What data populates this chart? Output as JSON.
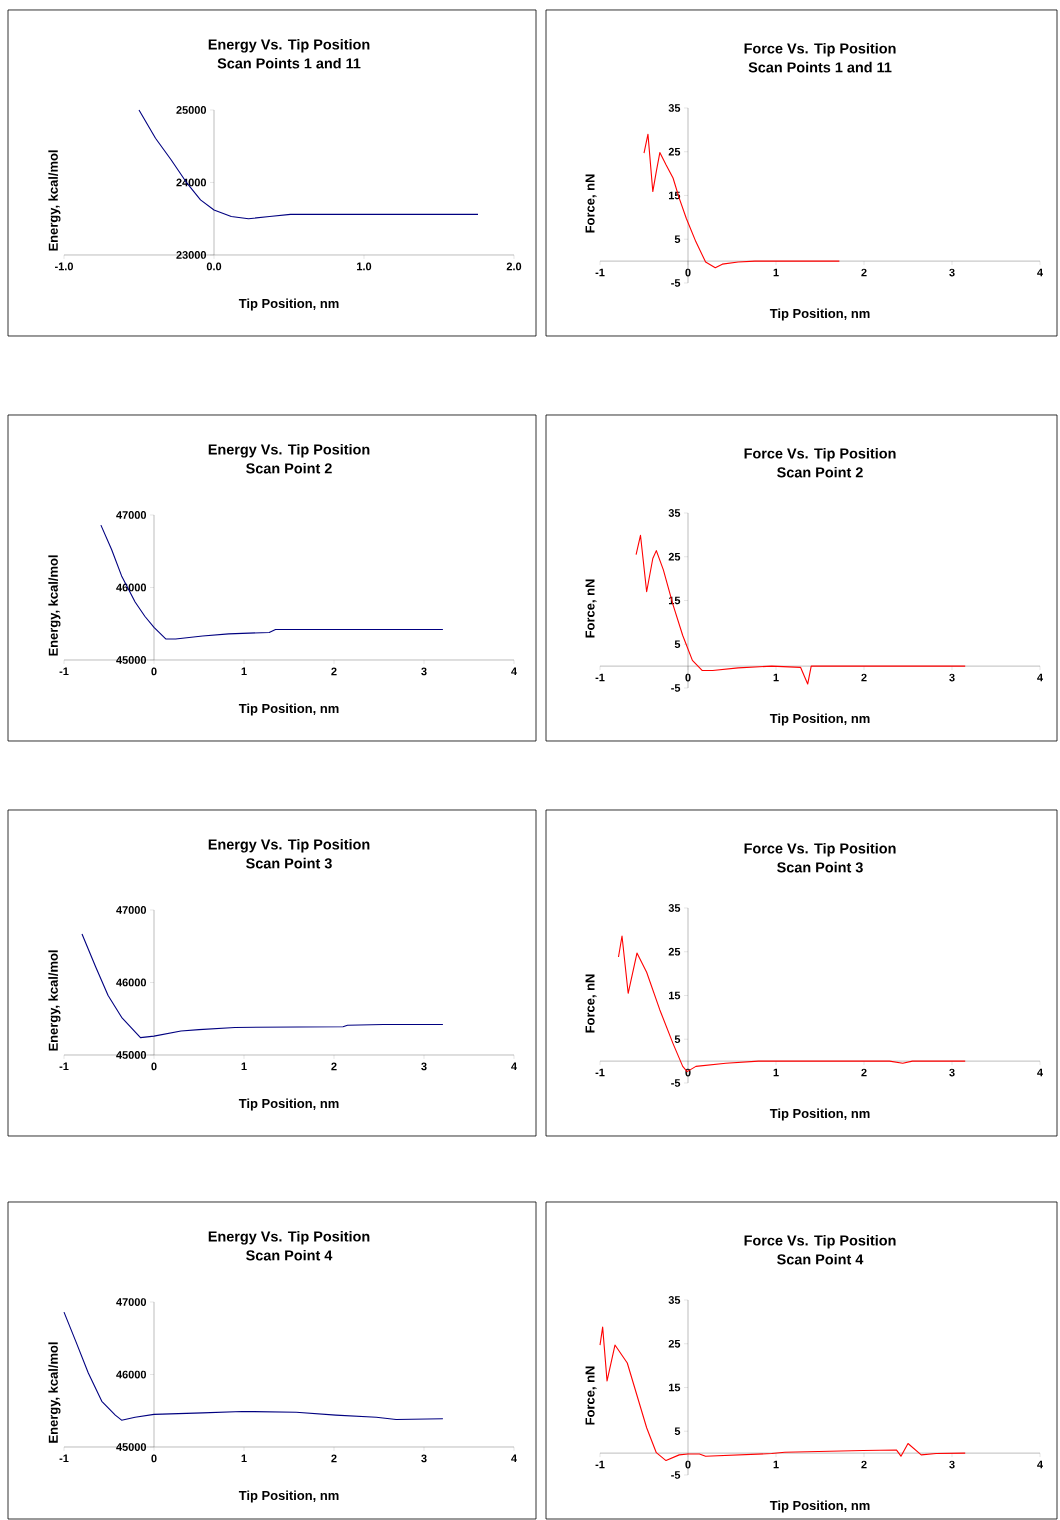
{
  "chart_data": [
    {
      "type": "line",
      "title": "Energy Vs. Tip Position",
      "subtitle": "Scan Points 1 and 11",
      "xlabel": "Tip Position, nm",
      "ylabel": "Energy, kcal/mol",
      "color": "#000080",
      "x": [
        -0.5,
        -0.39,
        -0.285,
        -0.18,
        -0.09,
        0,
        0.115,
        0.23,
        0.37,
        0.51,
        1.0,
        1.5,
        1.76
      ],
      "values": [
        25000,
        24610,
        24310,
        23990,
        23760,
        23620,
        23530,
        23500,
        23530,
        23560,
        23560,
        23560,
        23560
      ],
      "xlim": [
        -1,
        2
      ],
      "ylim": [
        23000,
        25000
      ],
      "xticks": [
        {
          "value": -1,
          "label": "-1.0"
        },
        {
          "value": 0,
          "label": "0.0"
        },
        {
          "value": 1,
          "label": "1.0"
        },
        {
          "value": 2,
          "label": "2.0"
        }
      ],
      "yticks": [
        23000,
        24000,
        25000
      ]
    },
    {
      "type": "line",
      "title": "Force Vs. Tip Position",
      "subtitle": "Scan Points 1 and 11",
      "xlabel": "Tip Position, nm",
      "ylabel": "Force, nN",
      "color": "#ff0000",
      "x": [
        -0.5,
        -0.455,
        -0.4,
        -0.36,
        -0.32,
        -0.25,
        -0.17,
        -0.1,
        -0.02,
        0.09,
        0.2,
        0.31,
        0.39,
        0.57,
        0.76,
        1.72
      ],
      "values": [
        24.7,
        29.0,
        15.9,
        20.5,
        24.8,
        22,
        19,
        14.4,
        9.8,
        4.4,
        -0.2,
        -1.5,
        -0.7,
        -0.2,
        0,
        0
      ],
      "xlim": [
        -1,
        4
      ],
      "ylim": [
        -5,
        35
      ],
      "xticks": [
        -1,
        0,
        1,
        2,
        3,
        4
      ],
      "yticks": [
        -5,
        5,
        15,
        25,
        35
      ]
    },
    {
      "type": "line",
      "title": "Energy Vs. Tip Position",
      "subtitle": "Scan Point 2",
      "xlabel": "Tip Position, nm",
      "ylabel": "Energy, kcal/mol",
      "color": "#000080",
      "x": [
        -0.59,
        -0.47,
        -0.36,
        -0.21,
        -0.1,
        0,
        0.13,
        0.24,
        0.54,
        0.83,
        1.28,
        1.35,
        3.21
      ],
      "values": [
        46860,
        46520,
        46160,
        45800,
        45600,
        45450,
        45290,
        45290,
        45330,
        45360,
        45380,
        45420,
        45420
      ],
      "xlim": [
        -1,
        4
      ],
      "ylim": [
        45000,
        47000
      ],
      "xticks": [
        -1,
        0,
        1,
        2,
        3,
        4
      ],
      "yticks": [
        45000,
        46000,
        47000
      ]
    },
    {
      "type": "line",
      "title": "Force Vs. Tip Position",
      "subtitle": "Scan Point 2",
      "xlabel": "Tip Position, nm",
      "ylabel": "Force, nN",
      "color": "#ff0000",
      "x": [
        -0.59,
        -0.54,
        -0.47,
        -0.4,
        -0.36,
        -0.28,
        -0.17,
        -0.06,
        0.05,
        0.16,
        0.28,
        0.57,
        0.95,
        1.28,
        1.36,
        1.4,
        3.15
      ],
      "values": [
        25.5,
        29.9,
        17.0,
        24.6,
        26.4,
        22,
        14,
        7,
        1.3,
        -1.0,
        -1.0,
        -0.4,
        0,
        -0.3,
        -4.1,
        0,
        0
      ],
      "xlim": [
        -1,
        4
      ],
      "ylim": [
        -5,
        35
      ],
      "xticks": [
        -1,
        0,
        1,
        2,
        3,
        4
      ],
      "yticks": [
        -5,
        5,
        15,
        25,
        35
      ]
    },
    {
      "type": "line",
      "title": "Energy Vs. Tip Position",
      "subtitle": "Scan Point 3",
      "xlabel": "Tip Position, nm",
      "ylabel": "Energy, kcal/mol",
      "color": "#000080",
      "x": [
        -0.8,
        -0.65,
        -0.51,
        -0.36,
        -0.21,
        -0.15,
        0,
        0.3,
        0.5,
        0.9,
        2.1,
        2.15,
        2.55,
        3.21
      ],
      "values": [
        46670,
        46220,
        45820,
        45520,
        45320,
        45240,
        45260,
        45330,
        45350,
        45380,
        45390,
        45410,
        45420,
        45420
      ],
      "xlim": [
        -1,
        4
      ],
      "ylim": [
        45000,
        47000
      ],
      "xticks": [
        -1,
        0,
        1,
        2,
        3,
        4
      ],
      "yticks": [
        45000,
        46000,
        47000
      ]
    },
    {
      "type": "line",
      "title": "Force Vs. Tip Position",
      "subtitle": "Scan Point 3",
      "xlabel": "Tip Position, nm",
      "ylabel": "Force, nN",
      "color": "#ff0000",
      "x": [
        -0.79,
        -0.75,
        -0.68,
        -0.58,
        -0.47,
        -0.32,
        -0.17,
        -0.06,
        -0.01,
        0.09,
        0.43,
        0.8,
        2.29,
        2.44,
        2.55,
        3.15
      ],
      "values": [
        23.8,
        28.6,
        15.5,
        24.7,
        20.3,
        11.7,
        4.0,
        -1.2,
        -2.4,
        -1.2,
        -0.5,
        0,
        0,
        -0.5,
        0,
        0
      ],
      "xlim": [
        -1,
        4
      ],
      "ylim": [
        -5,
        35
      ],
      "xticks": [
        -1,
        0,
        1,
        2,
        3,
        4
      ],
      "yticks": [
        -5,
        5,
        15,
        25,
        35
      ]
    },
    {
      "type": "line",
      "title": "Energy Vs. Tip Position",
      "subtitle": "Scan Point 4",
      "xlabel": "Tip Position, nm",
      "ylabel": "Energy, kcal/mol",
      "color": "#000080",
      "x": [
        -1.0,
        -0.87,
        -0.73,
        -0.58,
        -0.43,
        -0.36,
        -0.21,
        0,
        0.54,
        0.98,
        1.58,
        2.02,
        2.47,
        2.69,
        3.21
      ],
      "values": [
        46860,
        46460,
        46020,
        45630,
        45440,
        45370,
        45410,
        45450,
        45470,
        45490,
        45480,
        45440,
        45410,
        45380,
        45390
      ],
      "xlim": [
        -1,
        4
      ],
      "ylim": [
        45000,
        47000
      ],
      "xticks": [
        -1,
        0,
        1,
        2,
        3,
        4
      ],
      "yticks": [
        45000,
        46000,
        47000
      ]
    },
    {
      "type": "line",
      "title": "Force Vs. Tip Position",
      "subtitle": "Scan Point 4",
      "xlabel": "Tip Position, nm",
      "ylabel": "Force, nN",
      "color": "#ff0000",
      "x": [
        -1.0,
        -0.97,
        -0.92,
        -0.83,
        -0.69,
        -0.47,
        -0.36,
        -0.25,
        -0.1,
        0,
        0.13,
        0.2,
        0.95,
        1.1,
        1.99,
        2.37,
        2.42,
        2.5,
        2.65,
        2.82,
        3.15
      ],
      "values": [
        24.7,
        28.8,
        16.5,
        24.7,
        20.6,
        5.8,
        0.1,
        -1.7,
        -0.4,
        -0.2,
        -0.2,
        -0.7,
        -0.1,
        0.2,
        0.6,
        0.7,
        -0.7,
        2.2,
        -0.4,
        -0.1,
        0
      ],
      "xlim": [
        -1,
        4
      ],
      "ylim": [
        -5,
        35
      ],
      "xticks": [
        -1,
        0,
        1,
        2,
        3,
        4
      ],
      "yticks": [
        -5,
        5,
        15,
        25,
        35
      ]
    }
  ]
}
